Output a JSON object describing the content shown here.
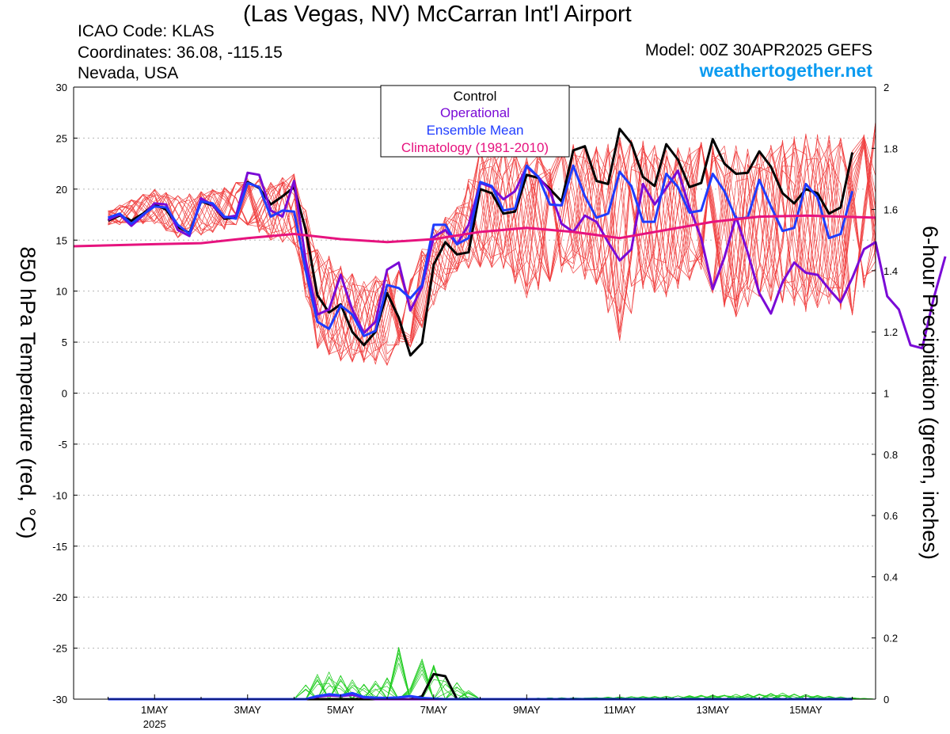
{
  "header": {
    "title": "(Las Vegas, NV) McCarran Int'l Airport",
    "icao": "ICAO Code: KLAS",
    "coordinates": "Coordinates: 36.08, -115.15",
    "region": "Nevada, USA",
    "model": "Model: 00Z 30APR2025 GEFS",
    "site": "weathertogether.net"
  },
  "colors": {
    "control": "#000000",
    "operational": "#7a0ad6",
    "ensemble_mean": "#1f3cff",
    "climatology": "#e6137e",
    "members_temp": "#f04040",
    "members_precip": "#1ecc1e",
    "site": "#0b9bf0"
  },
  "chart_data": {
    "type": "line",
    "y_left": {
      "label": "850 hPa Temperature (red, °C)",
      "range": [
        -30,
        30
      ],
      "ticks": [
        "30",
        "25",
        "20",
        "15",
        "10",
        "5",
        "0",
        "-5",
        "-10",
        "-15",
        "-20",
        "-25",
        "-30"
      ]
    },
    "y_right": {
      "label": "6-hour Precipitation (green, inches)",
      "range": [
        0,
        2
      ],
      "ticks": [
        "2",
        "1.8",
        "1.6",
        "1.4",
        "1.2",
        "1",
        "0.8",
        "0.6",
        "0.4",
        "0.2",
        "0"
      ]
    },
    "x_axis": {
      "range_days": [
        -0.74,
        16.5
      ],
      "ticks": [
        {
          "day": 1,
          "label": "1MAY",
          "sub": "2025"
        },
        {
          "day": 3,
          "label": "3MAY"
        },
        {
          "day": 5,
          "label": "5MAY"
        },
        {
          "day": 7,
          "label": "7MAY"
        },
        {
          "day": 9,
          "label": "9MAY"
        },
        {
          "day": 11,
          "label": "11MAY"
        },
        {
          "day": 13,
          "label": "13MAY"
        },
        {
          "day": 15,
          "label": "15MAY"
        }
      ]
    },
    "grid": "horizontal dashed",
    "legend": {
      "position": "top-center",
      "entries": [
        "Control",
        "Operational",
        "Ensemble Mean",
        "Climatology (1981-2010)"
      ]
    },
    "series": [
      {
        "name": "Control",
        "kind": "temperature",
        "values": [
          16.9,
          17.4,
          16.9,
          17.6,
          18.5,
          18.0,
          16.3,
          15.7,
          18.8,
          18.4,
          17.1,
          17.2,
          20.7,
          20.1,
          18.5,
          19.3,
          20.2,
          16.0,
          9.6,
          7.9,
          8.7,
          6.0,
          4.7,
          6.0,
          9.8,
          7.4,
          3.7,
          4.9,
          12.6,
          14.8,
          13.6,
          13.8,
          20.0,
          19.6,
          17.6,
          17.8,
          21.4,
          21.1,
          20.0,
          18.8,
          23.8,
          24.2,
          20.8,
          20.5,
          25.9,
          24.5,
          21.2,
          20.3,
          24.4,
          22.9,
          20.2,
          20.6,
          24.9,
          22.5,
          21.5,
          21.6,
          23.7,
          22.2,
          19.6,
          18.6,
          20.0,
          19.6,
          17.6,
          18.2,
          23.6
        ]
      },
      {
        "name": "Operational",
        "kind": "temperature",
        "values": [
          17.0,
          17.5,
          16.4,
          17.4,
          18.6,
          18.5,
          16.0,
          15.4,
          19.1,
          18.4,
          17.2,
          17.4,
          21.6,
          21.4,
          17.9,
          17.3,
          20.8,
          13.0,
          7.7,
          8.2,
          11.6,
          8.2,
          5.9,
          7.0,
          12.1,
          12.8,
          8.1,
          10.4,
          15.3,
          16.0,
          14.6,
          16.5,
          20.6,
          20.2,
          19.0,
          19.8,
          22.2,
          21.2,
          19.8,
          16.6,
          15.8,
          17.4,
          16.8,
          14.8,
          13.0,
          14.1,
          20.5,
          18.5,
          20.1,
          21.8,
          18.2,
          15.2,
          10.2,
          13.3,
          17.3,
          13.8,
          9.8,
          7.8,
          10.9,
          12.8,
          11.8,
          11.6,
          10.2,
          8.9,
          11.3,
          14.1,
          14.8,
          9.5,
          8.2,
          4.7,
          4.4,
          9.3,
          13.4
        ]
      },
      {
        "name": "Ensemble Mean",
        "kind": "temperature",
        "values": [
          17.2,
          17.6,
          16.6,
          17.5,
          18.3,
          18.2,
          16.5,
          15.6,
          18.8,
          18.6,
          17.3,
          17.1,
          20.6,
          20.2,
          17.3,
          17.9,
          17.8,
          12.0,
          7.0,
          6.3,
          8.6,
          7.7,
          5.6,
          6.1,
          10.6,
          10.3,
          9.3,
          10.6,
          16.5,
          16.5,
          14.6,
          15.2,
          20.7,
          20.3,
          17.9,
          18.1,
          22.3,
          21.2,
          18.5,
          18.4,
          22.3,
          19.3,
          17.2,
          17.6,
          21.7,
          20.3,
          16.8,
          16.8,
          21.5,
          20.2,
          17.7,
          17.9,
          21.5,
          19.8,
          17.1,
          17.2,
          20.9,
          18.3,
          15.9,
          16.2,
          20.5,
          19.2,
          15.2,
          15.6,
          19.8
        ]
      },
      {
        "name": "Climatology (1981-2010)",
        "kind": "temperature",
        "x": [
          -0.74,
          1.0,
          2.0,
          3.0,
          4.0,
          5.0,
          6.0,
          7.0,
          8.0,
          9.0,
          10.0,
          11.0,
          12.0,
          13.0,
          14.0,
          15.0,
          16.5
        ],
        "values": [
          14.4,
          14.6,
          14.7,
          15.2,
          15.6,
          15.1,
          14.8,
          15.1,
          15.8,
          16.2,
          15.8,
          15.2,
          16.0,
          16.8,
          17.3,
          17.4,
          17.2
        ]
      },
      {
        "name": "Control",
        "kind": "precipitation",
        "values": [
          0,
          0,
          0,
          0,
          0,
          0,
          0,
          0,
          0,
          0,
          0,
          0,
          0,
          0,
          0,
          0,
          0,
          0,
          0,
          0,
          0,
          0,
          0,
          0,
          0,
          0,
          0,
          0.009,
          0.082,
          0.075,
          0,
          0,
          0,
          0,
          0,
          0,
          0,
          0,
          0,
          0,
          0,
          0,
          0,
          0,
          0,
          0,
          0,
          0,
          0,
          0,
          0,
          0,
          0,
          0,
          0,
          0,
          0,
          0,
          0,
          0,
          0,
          0,
          0,
          0,
          0
        ]
      },
      {
        "name": "Operational",
        "kind": "precipitation",
        "values": [
          0,
          0,
          0,
          0,
          0,
          0,
          0,
          0,
          0,
          0,
          0,
          0,
          0,
          0,
          0,
          0,
          0,
          0,
          0.008,
          0.012,
          0.01,
          0.014,
          0.005,
          0,
          0,
          0,
          0,
          0,
          0,
          0,
          0,
          0,
          0,
          0,
          0,
          0,
          0,
          0,
          0,
          0,
          0,
          0,
          0,
          0,
          0,
          0,
          0,
          0,
          0,
          0,
          0,
          0,
          0,
          0,
          0,
          0,
          0,
          0,
          0,
          0,
          0,
          0,
          0,
          0,
          0
        ]
      },
      {
        "name": "Ensemble Mean",
        "kind": "precipitation",
        "values": [
          0,
          0,
          0,
          0,
          0,
          0,
          0,
          0,
          0,
          0,
          0,
          0,
          0,
          0,
          0,
          0,
          0,
          0,
          0.01,
          0.016,
          0.012,
          0.02,
          0.007,
          0.005,
          0.004,
          0.006,
          0.01,
          0.004,
          0.002,
          0,
          0,
          0,
          0,
          0,
          0,
          0,
          0,
          0,
          0,
          0,
          0,
          0,
          0,
          0,
          0,
          0,
          0,
          0,
          0,
          0,
          0,
          0,
          0,
          0,
          0,
          0,
          0,
          0,
          0,
          0,
          0,
          0,
          0,
          0,
          0
        ]
      },
      {
        "name": "Members Temperature Upper Envelope",
        "kind": "temperature-envelope",
        "x": [
          -0.74,
          0,
          1,
          1.5,
          2,
          2.5,
          3,
          3.5,
          4.0,
          4.5,
          5,
          5.5,
          6,
          6.5,
          7,
          7.5,
          8,
          8.5,
          9,
          9.5,
          10,
          10.5,
          11,
          11.5,
          12,
          12.5,
          13,
          13.5,
          14,
          14.5,
          15,
          15.5,
          16,
          16.5
        ],
        "values": [
          17.4,
          18.0,
          20.2,
          19.6,
          20.0,
          20.4,
          21.6,
          21.0,
          22.0,
          15.0,
          13.0,
          11.4,
          12.6,
          12.4,
          16.7,
          18.6,
          24.6,
          25.0,
          23.9,
          24.9,
          25.1,
          25.0,
          26.2,
          25.6,
          24.7,
          25.1,
          25.7,
          25.2,
          24.6,
          25.8,
          26.4,
          26.2,
          25.8,
          27.5
        ]
      },
      {
        "name": "Members Temperature Lower Envelope",
        "kind": "temperature-envelope",
        "x": [
          -0.74,
          0,
          1,
          1.5,
          2,
          2.5,
          3,
          3.5,
          4.0,
          4.5,
          5,
          5.5,
          6,
          6.5,
          7,
          7.5,
          8,
          8.5,
          9,
          9.5,
          10,
          10.5,
          11,
          11.5,
          12,
          12.5,
          13,
          13.5,
          14,
          14.5,
          15,
          15.5,
          16,
          16.5
        ],
        "values": [
          16.0,
          16.4,
          16.4,
          15.0,
          15.2,
          15.8,
          16.2,
          14.6,
          14.0,
          3.8,
          2.6,
          2.5,
          2.2,
          4.1,
          7.8,
          11.6,
          11.7,
          11.5,
          8.5,
          10.2,
          11.0,
          9.8,
          4.0,
          9.4,
          8.6,
          10.3,
          8.5,
          6.5,
          8.3,
          7.8,
          7.0,
          7.8,
          6.7,
          10.8
        ]
      },
      {
        "name": "Members Precipitation Peak",
        "kind": "precipitation-envelope",
        "x": [
          0,
          4,
          4.4,
          4.8,
          5.5,
          6,
          6.3,
          8,
          10,
          12,
          14.5,
          16.5
        ],
        "values": [
          0,
          0,
          0.08,
          0.09,
          0.05,
          0.07,
          0.19,
          0,
          0.006,
          0.01,
          0.02,
          0
        ]
      }
    ]
  }
}
